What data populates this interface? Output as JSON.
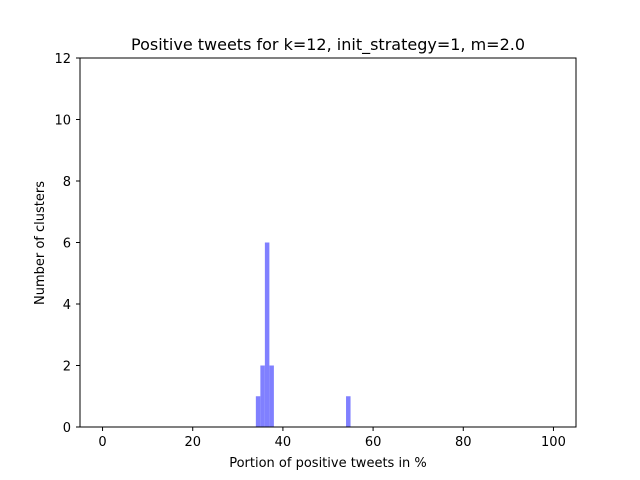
{
  "chart_data": {
    "type": "bar",
    "title": "Positive tweets for k=12, init_strategy=1, m=2.0",
    "xlabel": "Portion of positive tweets in %",
    "ylabel": "Number of clusters",
    "xlim": [
      -5,
      105
    ],
    "ylim": [
      0,
      12
    ],
    "xticks": [
      0,
      20,
      40,
      60,
      80,
      100
    ],
    "yticks": [
      0,
      2,
      4,
      6,
      8,
      10,
      12
    ],
    "bin_width": 1,
    "bins": [
      {
        "x0": 34,
        "x1": 35,
        "count": 1
      },
      {
        "x0": 35,
        "x1": 36,
        "count": 2
      },
      {
        "x0": 36,
        "x1": 37,
        "count": 6
      },
      {
        "x0": 37,
        "x1": 38,
        "count": 2
      },
      {
        "x0": 54,
        "x1": 55,
        "count": 1
      }
    ],
    "grid": false,
    "bar_color": "#8080ff"
  }
}
